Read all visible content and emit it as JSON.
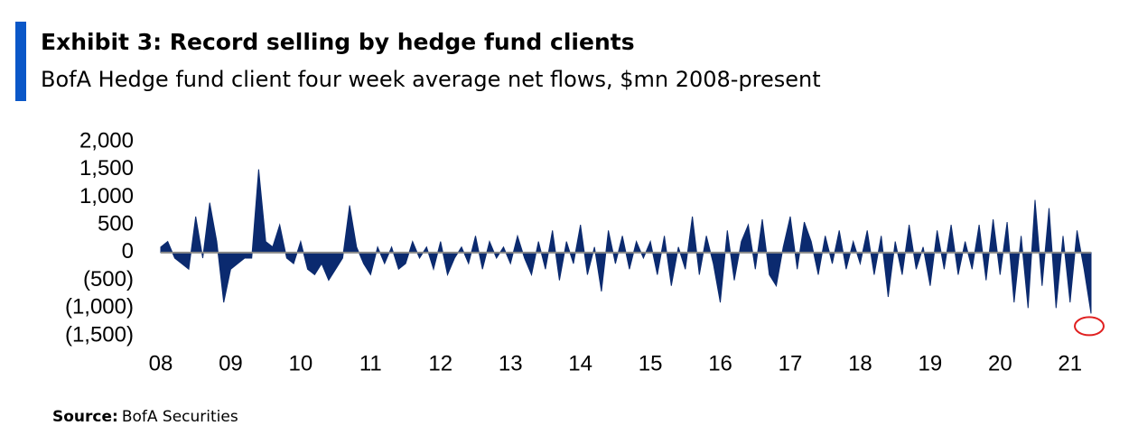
{
  "chart_data": {
    "type": "area",
    "title": "Exhibit 3: Record selling by hedge fund clients",
    "subtitle": "BofA Hedge fund client four week average net flows, $mn 2008-present",
    "source_label": "Source:",
    "source": "BofA Securities",
    "color": "#0b2a6f",
    "x": [
      2008.0,
      2008.1,
      2008.2,
      2008.3,
      2008.4,
      2008.5,
      2008.6,
      2008.7,
      2008.8,
      2008.9,
      2009.0,
      2009.1,
      2009.2,
      2009.3,
      2009.4,
      2009.5,
      2009.6,
      2009.7,
      2009.8,
      2009.9,
      2010.0,
      2010.1,
      2010.2,
      2010.3,
      2010.4,
      2010.5,
      2010.6,
      2010.7,
      2010.8,
      2010.9,
      2011.0,
      2011.1,
      2011.2,
      2011.3,
      2011.4,
      2011.5,
      2011.6,
      2011.7,
      2011.8,
      2011.9,
      2012.0,
      2012.1,
      2012.2,
      2012.3,
      2012.4,
      2012.5,
      2012.6,
      2012.7,
      2012.8,
      2012.9,
      2013.0,
      2013.1,
      2013.2,
      2013.3,
      2013.4,
      2013.5,
      2013.6,
      2013.7,
      2013.8,
      2013.9,
      2014.0,
      2014.1,
      2014.2,
      2014.3,
      2014.4,
      2014.5,
      2014.6,
      2014.7,
      2014.8,
      2014.9,
      2015.0,
      2015.1,
      2015.2,
      2015.3,
      2015.4,
      2015.5,
      2015.6,
      2015.7,
      2015.8,
      2015.9,
      2016.0,
      2016.1,
      2016.2,
      2016.3,
      2016.4,
      2016.5,
      2016.6,
      2016.7,
      2016.8,
      2016.9,
      2017.0,
      2017.1,
      2017.2,
      2017.3,
      2017.4,
      2017.5,
      2017.6,
      2017.7,
      2017.8,
      2017.9,
      2018.0,
      2018.1,
      2018.2,
      2018.3,
      2018.4,
      2018.5,
      2018.6,
      2018.7,
      2018.8,
      2018.9,
      2019.0,
      2019.1,
      2019.2,
      2019.3,
      2019.4,
      2019.5,
      2019.6,
      2019.7,
      2019.8,
      2019.9,
      2020.0,
      2020.1,
      2020.2,
      2020.3,
      2020.4,
      2020.5,
      2020.6,
      2020.7,
      2020.8,
      2020.9,
      2021.0,
      2021.1,
      2021.2,
      2021.3
    ],
    "values": [
      100,
      200,
      -100,
      -200,
      -300,
      650,
      -100,
      900,
      200,
      -900,
      -300,
      -200,
      -100,
      -100,
      1500,
      200,
      100,
      500,
      -100,
      -200,
      200,
      -300,
      -400,
      -200,
      -500,
      -300,
      -100,
      850,
      100,
      -200,
      -400,
      100,
      -200,
      100,
      -300,
      -200,
      200,
      -100,
      100,
      -300,
      200,
      -400,
      -100,
      100,
      -200,
      300,
      -300,
      200,
      -100,
      100,
      -200,
      300,
      -100,
      -400,
      200,
      -300,
      400,
      -500,
      200,
      -200,
      500,
      -400,
      100,
      -700,
      400,
      -200,
      300,
      -300,
      200,
      -100,
      200,
      -400,
      300,
      -600,
      100,
      -300,
      650,
      -400,
      300,
      -200,
      -900,
      400,
      -500,
      200,
      500,
      -300,
      600,
      -400,
      -600,
      100,
      650,
      -300,
      550,
      200,
      -400,
      300,
      -200,
      400,
      -300,
      200,
      -200,
      400,
      -400,
      300,
      -800,
      200,
      -400,
      500,
      -300,
      100,
      -600,
      400,
      -300,
      500,
      -400,
      200,
      -300,
      500,
      -500,
      600,
      -400,
      550,
      -900,
      300,
      -1000,
      950,
      -600,
      800,
      -1000,
      300,
      -900,
      400,
      -300,
      -1100
    ],
    "xlim": [
      2008,
      2021.3
    ],
    "xticks": [
      {
        "value": 2008,
        "label": "08"
      },
      {
        "value": 2009,
        "label": "09"
      },
      {
        "value": 2010,
        "label": "10"
      },
      {
        "value": 2011,
        "label": "11"
      },
      {
        "value": 2012,
        "label": "12"
      },
      {
        "value": 2013,
        "label": "13"
      },
      {
        "value": 2014,
        "label": "14"
      },
      {
        "value": 2015,
        "label": "15"
      },
      {
        "value": 2016,
        "label": "16"
      },
      {
        "value": 2017,
        "label": "17"
      },
      {
        "value": 2018,
        "label": "18"
      },
      {
        "value": 2019,
        "label": "19"
      },
      {
        "value": 2020,
        "label": "20"
      },
      {
        "value": 2021,
        "label": "21"
      }
    ],
    "ylim": [
      -1500,
      2000
    ],
    "yticks": [
      {
        "value": 2000,
        "label": "2,000"
      },
      {
        "value": 1500,
        "label": "1,500"
      },
      {
        "value": 1000,
        "label": "1,000"
      },
      500,
      0,
      {
        "value": -500,
        "label": "(500)"
      },
      {
        "value": -1000,
        "label": "(1,000)"
      },
      {
        "value": -1500,
        "label": "(1,500)"
      }
    ]
  }
}
